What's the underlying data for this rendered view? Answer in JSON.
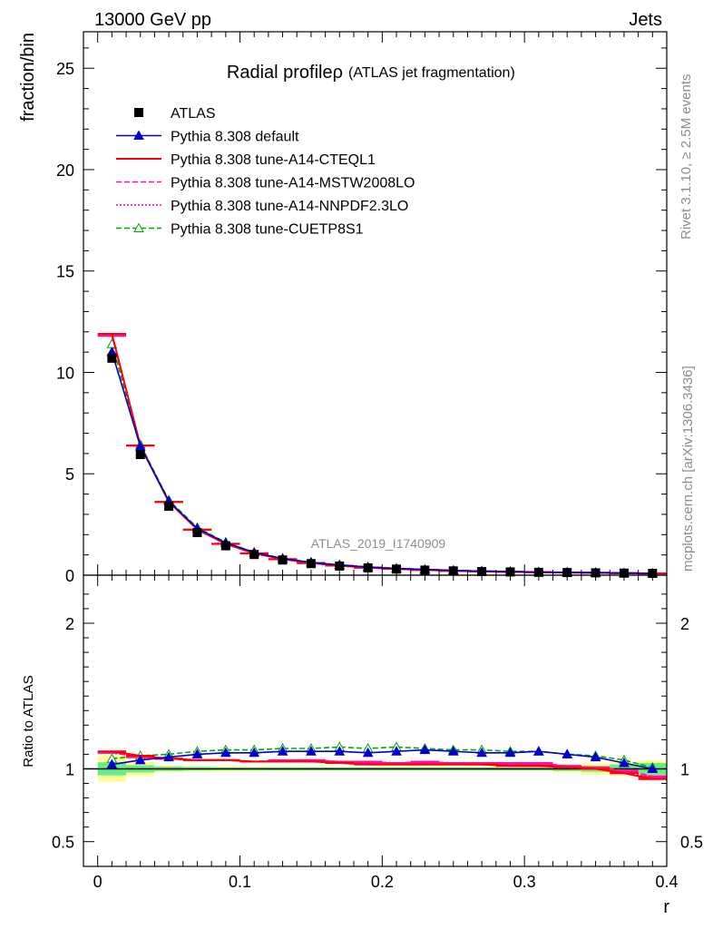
{
  "header": {
    "left": "13000 GeV pp",
    "right": "Jets"
  },
  "side_labels": {
    "rivet": "Rivet 3.1.10, ≥ 2.5M events",
    "mcplots": "mcplots.cern.ch [arXiv:1306.3436]"
  },
  "chart_data": [
    {
      "type": "line",
      "title": "Radial profileρ",
      "subtitle": "(ATLAS jet fragmentation)",
      "ylabel": "fraction/bin",
      "xlabel": "r",
      "analysis_label": "ATLAS_2019_I1740909",
      "xlim": [
        -0.01,
        0.4
      ],
      "ylim": [
        0,
        26.8
      ],
      "yticks": [
        0,
        5,
        10,
        15,
        20,
        25
      ],
      "ytick_labels": [
        "0",
        "5",
        "10",
        "15",
        "20",
        "25"
      ],
      "legend_position": "top-left",
      "x": [
        0.01,
        0.03,
        0.05,
        0.07,
        0.09,
        0.11,
        0.13,
        0.15,
        0.17,
        0.19,
        0.21,
        0.23,
        0.25,
        0.27,
        0.29,
        0.31,
        0.33,
        0.35,
        0.37,
        0.39
      ],
      "series": [
        {
          "name": "ATLAS",
          "color": "#000000",
          "style": "square-marker",
          "values": [
            10.7,
            5.95,
            3.4,
            2.1,
            1.45,
            1.02,
            0.75,
            0.57,
            0.45,
            0.36,
            0.3,
            0.25,
            0.21,
            0.18,
            0.16,
            0.14,
            0.13,
            0.115,
            0.1,
            0.09
          ]
        },
        {
          "name": "Pythia 8.308 default",
          "color": "#0000cc",
          "style": "solid-triangle",
          "values": [
            11.0,
            6.35,
            3.65,
            2.3,
            1.6,
            1.12,
            0.82,
            0.63,
            0.5,
            0.4,
            0.33,
            0.28,
            0.235,
            0.2,
            0.175,
            0.155,
            0.142,
            0.125,
            0.108,
            0.09
          ]
        },
        {
          "name": "Pythia 8.308 tune-A14-CTEQL1",
          "color": "#ff0000",
          "style": "solid",
          "values": [
            11.9,
            6.4,
            3.62,
            2.25,
            1.55,
            1.08,
            0.79,
            0.6,
            0.47,
            0.37,
            0.31,
            0.26,
            0.215,
            0.185,
            0.163,
            0.143,
            0.131,
            0.115,
            0.097,
            0.083
          ]
        },
        {
          "name": "Pythia 8.308 tune-A14-MSTW2008LO",
          "color": "#ff1493",
          "style": "dashed",
          "values": [
            11.8,
            6.38,
            3.6,
            2.24,
            1.54,
            1.07,
            0.79,
            0.6,
            0.47,
            0.375,
            0.312,
            0.26,
            0.217,
            0.187,
            0.165,
            0.145,
            0.133,
            0.117,
            0.099,
            0.085
          ]
        },
        {
          "name": "Pythia 8.308 tune-A14-NNPDF2.3LO",
          "color": "#ff00cc",
          "style": "dotted",
          "values": [
            11.85,
            6.39,
            3.61,
            2.24,
            1.55,
            1.075,
            0.79,
            0.6,
            0.47,
            0.373,
            0.311,
            0.26,
            0.216,
            0.186,
            0.164,
            0.144,
            0.132,
            0.116,
            0.098,
            0.084
          ]
        },
        {
          "name": "Pythia 8.308 tune-CUETP8S1",
          "color": "#00aa00",
          "style": "dashed-open-triangle",
          "values": [
            11.4,
            6.45,
            3.7,
            2.35,
            1.62,
            1.13,
            0.83,
            0.64,
            0.51,
            0.41,
            0.34,
            0.285,
            0.238,
            0.203,
            0.177,
            0.156,
            0.143,
            0.126,
            0.109,
            0.091
          ]
        }
      ]
    },
    {
      "type": "line",
      "ylabel": "Ratio to ATLAS",
      "xlabel": "r",
      "xlim": [
        -0.01,
        0.4
      ],
      "ylim": [
        0.33,
        2.33
      ],
      "xticks": [
        0,
        0.1,
        0.2,
        0.3,
        0.4
      ],
      "xtick_labels": [
        "0",
        "0.1",
        "0.2",
        "0.3",
        "0.4"
      ],
      "yticks": [
        0.5,
        1,
        2
      ],
      "ytick_labels": [
        "0.5",
        "1",
        "2"
      ],
      "x": [
        0.01,
        0.03,
        0.05,
        0.07,
        0.09,
        0.11,
        0.13,
        0.15,
        0.17,
        0.19,
        0.21,
        0.23,
        0.25,
        0.27,
        0.29,
        0.31,
        0.33,
        0.35,
        0.37,
        0.39
      ],
      "bands": {
        "stat_color": "#66ee88",
        "total_color": "#ffff99",
        "stat_low": [
          0.955,
          0.975,
          0.985,
          0.988,
          0.99,
          0.99,
          0.99,
          0.99,
          0.99,
          0.99,
          0.99,
          0.99,
          0.99,
          0.99,
          0.99,
          0.99,
          0.985,
          0.98,
          0.97,
          0.96
        ],
        "stat_high": [
          1.045,
          1.025,
          1.015,
          1.012,
          1.01,
          1.01,
          1.01,
          1.01,
          1.01,
          1.01,
          1.01,
          1.01,
          1.01,
          1.01,
          1.01,
          1.01,
          1.015,
          1.02,
          1.03,
          1.04
        ],
        "total_low": [
          0.91,
          0.95,
          0.975,
          0.98,
          0.98,
          0.982,
          0.984,
          0.985,
          0.985,
          0.985,
          0.985,
          0.985,
          0.985,
          0.985,
          0.985,
          0.985,
          0.975,
          0.96,
          0.95,
          0.94
        ],
        "total_high": [
          1.09,
          1.05,
          1.025,
          1.02,
          1.02,
          1.018,
          1.016,
          1.015,
          1.015,
          1.015,
          1.015,
          1.015,
          1.015,
          1.015,
          1.015,
          1.015,
          1.025,
          1.04,
          1.05,
          1.06
        ]
      },
      "series": [
        {
          "name": "Pythia 8.308 default",
          "color": "#0000cc",
          "style": "solid-triangle",
          "values": [
            1.03,
            1.06,
            1.08,
            1.1,
            1.11,
            1.11,
            1.12,
            1.12,
            1.12,
            1.11,
            1.12,
            1.13,
            1.12,
            1.11,
            1.11,
            1.12,
            1.1,
            1.08,
            1.04,
            1.0
          ]
        },
        {
          "name": "Pythia 8.308 tune-A14-CTEQL1",
          "color": "#ff0000",
          "style": "solid",
          "values": [
            1.12,
            1.09,
            1.07,
            1.06,
            1.06,
            1.05,
            1.05,
            1.05,
            1.04,
            1.03,
            1.03,
            1.03,
            1.03,
            1.03,
            1.02,
            1.02,
            1.01,
            1.0,
            0.97,
            0.93
          ]
        },
        {
          "name": "Pythia 8.308 tune-A14-MSTW2008LO",
          "color": "#ff1493",
          "style": "dashed",
          "values": [
            1.11,
            1.08,
            1.07,
            1.06,
            1.06,
            1.05,
            1.06,
            1.06,
            1.05,
            1.05,
            1.04,
            1.05,
            1.04,
            1.04,
            1.04,
            1.04,
            1.02,
            1.01,
            0.99,
            0.95
          ]
        },
        {
          "name": "Pythia 8.308 tune-A14-NNPDF2.3LO",
          "color": "#ff00cc",
          "style": "dotted",
          "values": [
            1.11,
            1.08,
            1.07,
            1.06,
            1.06,
            1.05,
            1.05,
            1.06,
            1.05,
            1.04,
            1.04,
            1.04,
            1.04,
            1.03,
            1.03,
            1.03,
            1.02,
            1.01,
            0.98,
            0.94
          ]
        },
        {
          "name": "Pythia 8.308 tune-CUETP8S1",
          "color": "#00aa00",
          "style": "dashed-open-triangle",
          "values": [
            1.07,
            1.09,
            1.1,
            1.12,
            1.13,
            1.13,
            1.14,
            1.14,
            1.15,
            1.14,
            1.15,
            1.14,
            1.13,
            1.13,
            1.12,
            1.12,
            1.1,
            1.09,
            1.06,
            1.01
          ]
        }
      ]
    }
  ]
}
